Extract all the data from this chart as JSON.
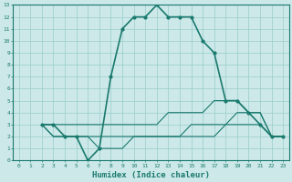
{
  "title": "",
  "xlabel": "Humidex (Indice chaleur)",
  "ylabel": "",
  "bg_color": "#cce8e8",
  "grid_color": "#99cccc",
  "line_color": "#1a7a6e",
  "xlim": [
    -0.5,
    23.5
  ],
  "ylim": [
    0,
    13
  ],
  "xticks": [
    0,
    1,
    2,
    3,
    4,
    5,
    6,
    7,
    8,
    9,
    10,
    11,
    12,
    13,
    14,
    15,
    16,
    17,
    18,
    19,
    20,
    21,
    22,
    23
  ],
  "yticks": [
    0,
    1,
    2,
    3,
    4,
    5,
    6,
    7,
    8,
    9,
    10,
    11,
    12,
    13
  ],
  "series": [
    {
      "x": [
        2,
        3,
        4,
        5,
        6,
        7,
        8,
        9,
        10,
        11,
        12,
        13,
        14,
        15,
        16,
        17,
        18,
        19,
        20,
        21,
        22,
        23
      ],
      "y": [
        3,
        3,
        2,
        2,
        0,
        1,
        7,
        11,
        12,
        12,
        13,
        12,
        12,
        12,
        10,
        9,
        5,
        5,
        4,
        3,
        2,
        2
      ],
      "linestyle": "-",
      "marker": "o",
      "markersize": 2.0,
      "linewidth": 1.2
    },
    {
      "x": [
        2,
        3,
        4,
        5,
        6,
        7,
        8,
        9,
        10,
        11,
        12,
        13,
        14,
        15,
        16,
        17,
        18,
        19,
        20,
        21,
        22,
        23
      ],
      "y": [
        3,
        3,
        3,
        3,
        3,
        3,
        3,
        3,
        3,
        3,
        3,
        4,
        4,
        4,
        4,
        5,
        5,
        5,
        4,
        4,
        2,
        2
      ],
      "linestyle": "-",
      "marker": null,
      "markersize": 0,
      "linewidth": 0.8
    },
    {
      "x": [
        2,
        3,
        4,
        5,
        6,
        7,
        8,
        9,
        10,
        11,
        12,
        13,
        14,
        15,
        16,
        17,
        18,
        19,
        20,
        21,
        22,
        23
      ],
      "y": [
        3,
        2,
        2,
        2,
        2,
        2,
        2,
        2,
        2,
        2,
        2,
        2,
        2,
        3,
        3,
        3,
        3,
        4,
        4,
        4,
        2,
        2
      ],
      "linestyle": "-",
      "marker": null,
      "markersize": 0,
      "linewidth": 0.8
    },
    {
      "x": [
        2,
        3,
        4,
        5,
        6,
        7,
        8,
        9,
        10,
        11,
        12,
        13,
        14,
        15,
        16,
        17,
        18,
        19,
        20,
        21,
        22,
        23
      ],
      "y": [
        3,
        2,
        2,
        2,
        2,
        1,
        1,
        1,
        2,
        2,
        2,
        2,
        2,
        2,
        2,
        2,
        3,
        3,
        3,
        3,
        2,
        2
      ],
      "linestyle": "-",
      "marker": null,
      "markersize": 0,
      "linewidth": 0.8
    }
  ]
}
